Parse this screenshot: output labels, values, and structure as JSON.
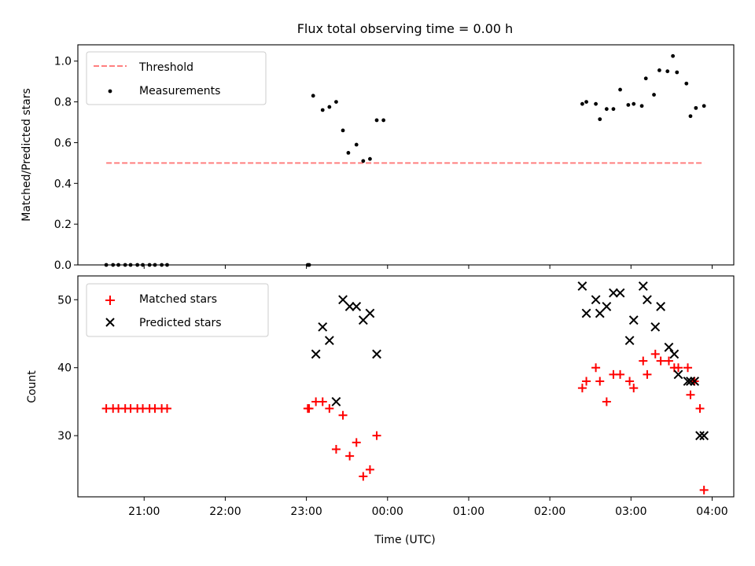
{
  "chart_data": [
    {
      "type": "line",
      "title": "Flux total observing time = 0.00 h",
      "xlabel": "",
      "ylabel": "Matched/Predicted stars",
      "xlim": [
        "20:11",
        "04:16"
      ],
      "ylim": [
        0,
        1.08
      ],
      "x_ticks": [
        {
          "time": "21:00",
          "label": "21:00"
        },
        {
          "time": "22:00",
          "label": "22:00"
        },
        {
          "time": "23:00",
          "label": "23:00"
        },
        {
          "time": "00:00",
          "label": "00:00"
        },
        {
          "time": "01:00",
          "label": "01:00"
        },
        {
          "time": "02:00",
          "label": "02:00"
        },
        {
          "time": "03:00",
          "label": "03:00"
        },
        {
          "time": "04:00",
          "label": "04:00"
        }
      ],
      "x_ticklabels_shown": false,
      "y_ticks": [
        "0.0",
        "0.2",
        "0.4",
        "0.6",
        "0.8",
        "1.0"
      ],
      "legend_position": "upper-left",
      "grid": false,
      "series": [
        {
          "name": "Threshold",
          "kind": "dashed-line",
          "color": "#ff7f7f",
          "x": [
            "20:32",
            "03:54"
          ],
          "y": [
            0.5,
            0.5
          ]
        },
        {
          "name": "Measurements",
          "kind": "scatter-dot",
          "color": "#000000",
          "x": [
            "20:32",
            "20:37",
            "20:41",
            "20:46",
            "20:50",
            "20:55",
            "20:59",
            "21:04",
            "21:08",
            "21:13",
            "21:17",
            "23:01",
            "23:02",
            "23:05",
            "23:12",
            "23:17",
            "23:22",
            "23:27",
            "23:31",
            "23:37",
            "23:42",
            "23:47",
            "23:52",
            "23:57",
            "02:24",
            "02:27",
            "02:34",
            "02:37",
            "02:42",
            "02:47",
            "02:52",
            "02:58",
            "03:02",
            "03:08",
            "03:11",
            "03:17",
            "03:21",
            "03:27",
            "03:31",
            "03:34",
            "03:41",
            "03:44",
            "03:48",
            "03:54"
          ],
          "y": [
            0,
            0,
            0,
            0,
            0,
            0,
            0,
            0,
            0,
            0,
            0,
            0,
            0,
            0.83,
            0.76,
            0.775,
            0.8,
            0.66,
            0.55,
            0.59,
            0.51,
            0.52,
            0.71,
            0.71,
            0.79,
            0.8,
            0.79,
            0.715,
            0.765,
            0.765,
            0.86,
            0.785,
            0.79,
            0.78,
            0.915,
            0.835,
            0.955,
            0.95,
            1.025,
            0.945,
            0.89,
            0.73,
            0.77,
            0.78
          ]
        }
      ]
    },
    {
      "type": "scatter",
      "xlabel": "Time (UTC)",
      "ylabel": "Count",
      "xlim": [
        "20:11",
        "04:16"
      ],
      "ylim": [
        21,
        53.5
      ],
      "x_ticks": [
        {
          "time": "21:00",
          "label": "21:00"
        },
        {
          "time": "22:00",
          "label": "22:00"
        },
        {
          "time": "23:00",
          "label": "23:00"
        },
        {
          "time": "00:00",
          "label": "00:00"
        },
        {
          "time": "01:00",
          "label": "01:00"
        },
        {
          "time": "02:00",
          "label": "02:00"
        },
        {
          "time": "03:00",
          "label": "03:00"
        },
        {
          "time": "04:00",
          "label": "04:00"
        }
      ],
      "y_ticks": [
        "30",
        "40",
        "50"
      ],
      "legend_position": "upper-left",
      "grid": false,
      "series": [
        {
          "name": "Matched stars",
          "marker": "plus",
          "color": "#ff0000",
          "x": [
            "20:32",
            "20:37",
            "20:41",
            "20:46",
            "20:50",
            "20:55",
            "20:59",
            "21:04",
            "21:08",
            "21:13",
            "21:17",
            "23:01",
            "23:02",
            "23:07",
            "23:12",
            "23:17",
            "23:22",
            "23:27",
            "23:32",
            "23:37",
            "23:42",
            "23:47",
            "23:52",
            "02:24",
            "02:27",
            "02:34",
            "02:37",
            "02:42",
            "02:47",
            "02:52",
            "02:59",
            "03:02",
            "03:09",
            "03:12",
            "03:18",
            "03:22",
            "03:28",
            "03:32",
            "03:35",
            "03:42",
            "03:44",
            "03:47",
            "03:51",
            "03:54"
          ],
          "y": [
            34,
            34,
            34,
            34,
            34,
            34,
            34,
            34,
            34,
            34,
            34,
            34,
            34,
            35,
            35,
            34,
            28,
            33,
            27,
            29,
            24,
            25,
            30,
            37,
            38,
            40,
            38,
            35,
            39,
            39,
            38,
            37,
            41,
            39,
            42,
            41,
            41,
            40,
            40,
            40,
            36,
            38,
            34,
            22
          ]
        },
        {
          "name": "Predicted stars",
          "marker": "x",
          "color": "#000000",
          "x": [
            "23:07",
            "23:12",
            "23:17",
            "23:22",
            "23:27",
            "23:32",
            "23:37",
            "23:42",
            "23:47",
            "23:52",
            "02:24",
            "02:27",
            "02:34",
            "02:37",
            "02:42",
            "02:47",
            "02:52",
            "02:59",
            "03:02",
            "03:09",
            "03:12",
            "03:18",
            "03:22",
            "03:28",
            "03:32",
            "03:35",
            "03:42",
            "03:44",
            "03:47",
            "03:51",
            "03:54"
          ],
          "y": [
            42,
            46,
            44,
            35,
            50,
            49,
            49,
            47,
            48,
            42,
            52,
            48,
            50,
            48,
            49,
            51,
            51,
            44,
            47,
            52,
            50,
            46,
            49,
            43,
            42,
            39,
            38,
            38,
            38,
            30,
            30
          ]
        }
      ]
    }
  ]
}
